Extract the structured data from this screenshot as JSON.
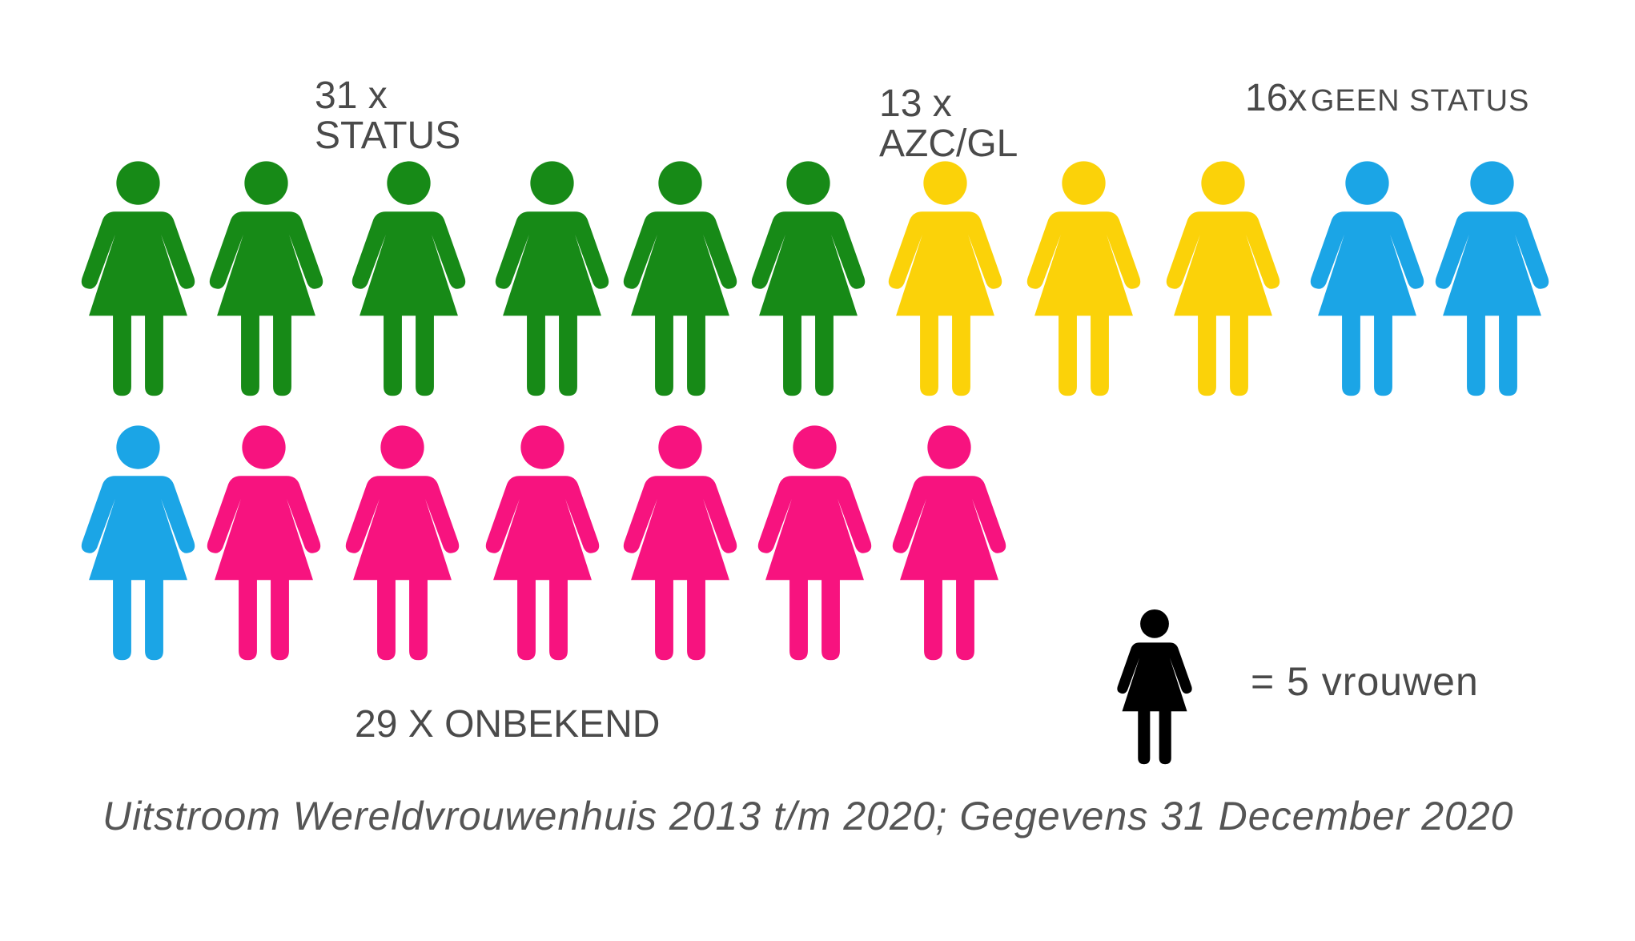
{
  "chart_data": {
    "type": "pictogram",
    "unit_icon": "woman-icon",
    "legend": {
      "icon_color": "#000000",
      "text": "= 5 vrouwen",
      "value_per_icon": 5
    },
    "series": [
      {
        "count": 31,
        "label_line1": "31 x",
        "label_line2": "STATUS",
        "color": "#178a17",
        "icons": 6.2
      },
      {
        "count": 13,
        "label_line1": "13 x",
        "label_line2": "AZC/GL",
        "color": "#fbd209",
        "icons": 2.6
      },
      {
        "count": 16,
        "label_line1": "16x",
        "label_line2": "GEEN STATUS",
        "color": "#1ba5e6",
        "icons": 3.2
      },
      {
        "count": 29,
        "label_line1": "29 X ONBEKEND",
        "label_line2": "",
        "color": "#f7137f",
        "icons": 5.8
      }
    ],
    "caption": "Uitstroom Wereldvrouwenhuis 2013 t/m 2020; Gegevens 31 December 2020"
  }
}
